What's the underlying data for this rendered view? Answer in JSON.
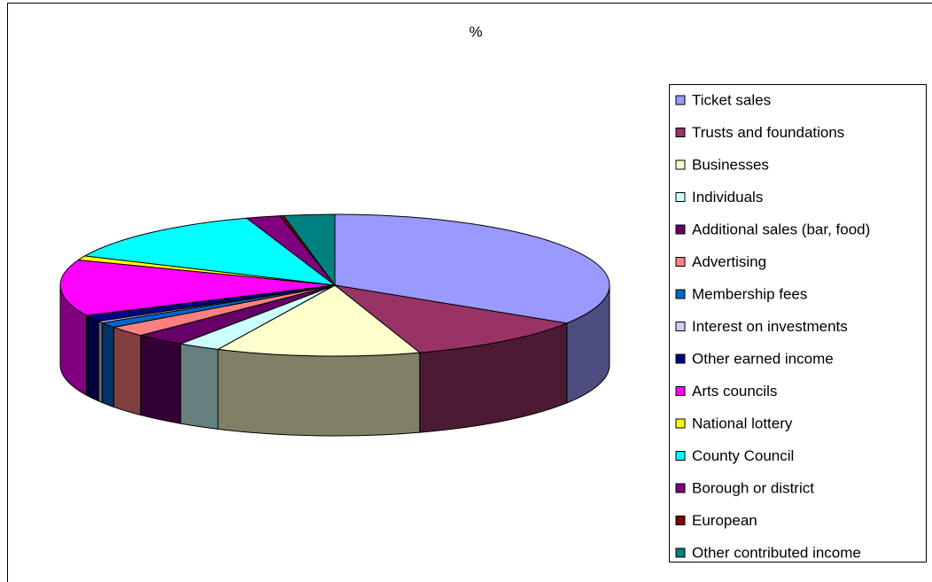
{
  "chart_data": {
    "type": "pie3d",
    "title": "%",
    "categories": [
      "Ticket sales",
      "Trusts and foundations",
      "Businesses",
      "Individuals",
      "Additional sales (bar, food)",
      "Advertising",
      "Membership fees",
      "Interest on investments",
      "Other earned income",
      "Arts councils",
      "National lottery",
      "County Council",
      "Borough or district",
      "European",
      "Other contributed income"
    ],
    "values": [
      34,
      11,
      12,
      2.5,
      3,
      2.4,
      1.2,
      0.4,
      1.5,
      12.8,
      1,
      13,
      2,
      0.2,
      3
    ],
    "colors": [
      "#9999FF",
      "#993366",
      "#FFFFCC",
      "#CCFFFF",
      "#660066",
      "#FF8080",
      "#0066CC",
      "#CCCCFF",
      "#000080",
      "#FF00FF",
      "#FFFF00",
      "#00FFFF",
      "#800080",
      "#800000",
      "#008080"
    ],
    "legend": "right"
  }
}
